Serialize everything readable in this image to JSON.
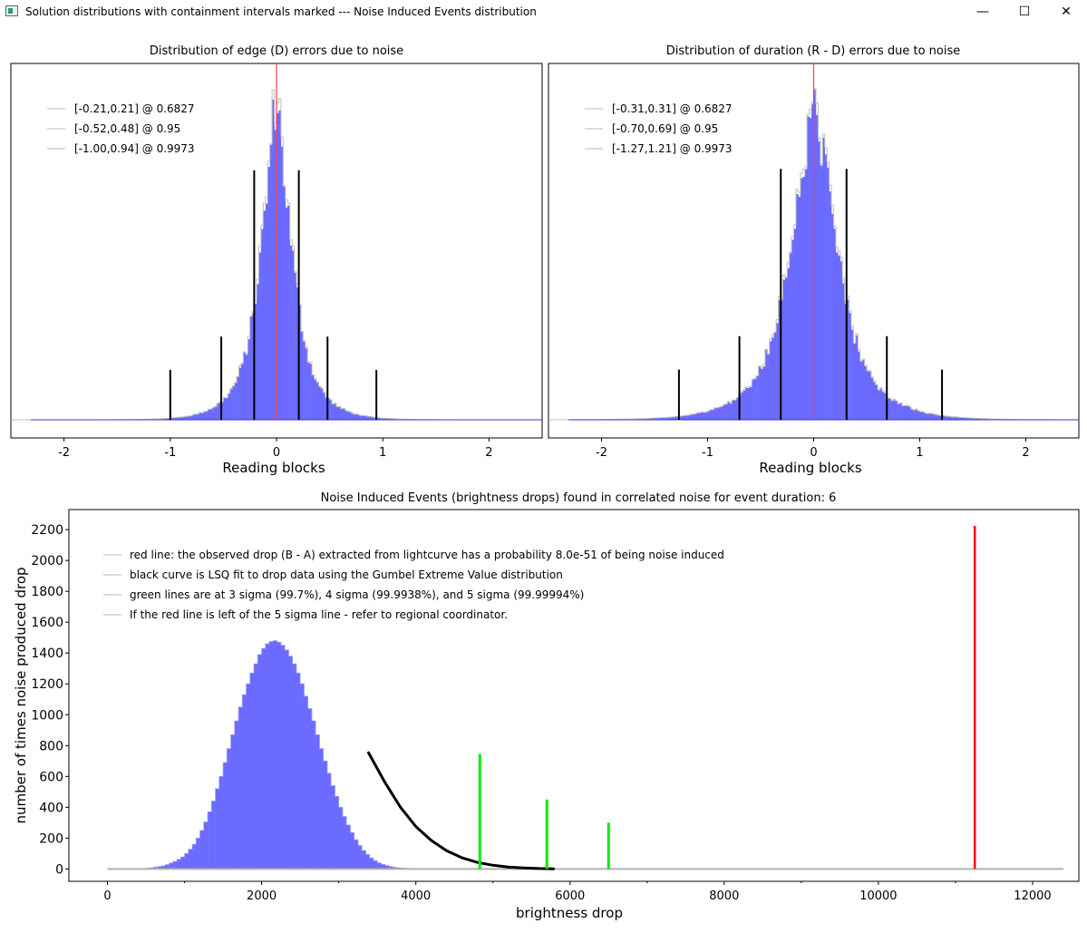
{
  "window": {
    "title": "Solution distributions with containment intervals marked --- Noise Induced Events distribution",
    "minimize_glyph": "—",
    "maximize_glyph": "☐",
    "close_glyph": "✕"
  },
  "chart_data": [
    {
      "type": "bar",
      "title": "Distribution of edge (D) errors due to noise",
      "xlabel": "Reading blocks",
      "ylabel": "",
      "xlim": [
        -2.5,
        2.5
      ],
      "x_ticks": [
        "-2",
        "-1",
        "0",
        "1",
        "2"
      ],
      "y_ticks_visible": false,
      "hist_color": "#6b6bff",
      "peak_line": {
        "x": 0.0,
        "color": "#ff4040"
      },
      "interval_lines": [
        {
          "lo": -0.21,
          "hi": 0.21,
          "rel_height": 0.75
        },
        {
          "lo": -0.52,
          "hi": 0.48,
          "rel_height": 0.25
        },
        {
          "lo": -1.0,
          "hi": 0.94,
          "rel_height": 0.15
        }
      ],
      "legend": [
        "[-0.21,0.21] @ 0.6827",
        "[-0.52,0.48] @ 0.95",
        "[-1.00,0.94] @ 0.9973"
      ],
      "legend_position": "top-left",
      "grid": false
    },
    {
      "type": "bar",
      "title": "Distribution of duration (R - D) errors due to noise",
      "xlabel": "Reading blocks",
      "ylabel": "",
      "xlim": [
        -2.5,
        2.5
      ],
      "x_ticks": [
        "-2",
        "-1",
        "0",
        "1",
        "2"
      ],
      "y_ticks_visible": false,
      "hist_color": "#6b6bff",
      "peak_line": {
        "x": 0.0,
        "color": "#ff4040"
      },
      "interval_lines": [
        {
          "lo": -0.31,
          "hi": 0.31,
          "rel_height": 0.75
        },
        {
          "lo": -0.7,
          "hi": 0.69,
          "rel_height": 0.25
        },
        {
          "lo": -1.27,
          "hi": 1.21,
          "rel_height": 0.15
        }
      ],
      "legend": [
        "[-0.31,0.31] @ 0.6827",
        "[-0.70,0.69] @ 0.95",
        "[-1.27,1.21] @ 0.9973"
      ],
      "legend_position": "top-left",
      "grid": false
    },
    {
      "type": "bar",
      "title": "Noise Induced Events (brightness drops) found in correlated noise for event duration: 6",
      "xlabel": "brightness drop",
      "ylabel": "number of times noise produced drop",
      "xlim": [
        -500,
        12600
      ],
      "ylim": [
        -80,
        2330
      ],
      "x_ticks": [
        0,
        2000,
        4000,
        6000,
        8000,
        10000,
        12000
      ],
      "y_ticks": [
        0,
        200,
        400,
        600,
        800,
        1000,
        1200,
        1400,
        1600,
        1800,
        2000,
        2200
      ],
      "hist_color": "#6b6bff",
      "histogram": {
        "bin_width": 50,
        "values": [
          0,
          0,
          0,
          0,
          0,
          0,
          0,
          0,
          2,
          3,
          5,
          8,
          12,
          16,
          20,
          28,
          38,
          48,
          62,
          78,
          100,
          128,
          160,
          200,
          250,
          305,
          370,
          440,
          520,
          600,
          690,
          780,
          870,
          960,
          1050,
          1130,
          1200,
          1270,
          1330,
          1390,
          1430,
          1460,
          1475,
          1480,
          1470,
          1450,
          1420,
          1380,
          1330,
          1270,
          1200,
          1120,
          1040,
          960,
          870,
          780,
          700,
          620,
          540,
          470,
          400,
          340,
          285,
          235,
          190,
          152,
          120,
          94,
          72,
          54,
          40,
          30,
          22,
          16,
          11,
          8,
          6,
          4,
          3,
          2,
          1,
          1,
          0,
          0,
          0,
          0,
          0
        ],
        "start": 0
      },
      "fit_curve": {
        "color": "#000000",
        "x_start": 3380,
        "x_end": 5800,
        "points": [
          [
            3380,
            760
          ],
          [
            3600,
            560
          ],
          [
            3800,
            400
          ],
          [
            4000,
            275
          ],
          [
            4200,
            185
          ],
          [
            4400,
            118
          ],
          [
            4600,
            72
          ],
          [
            4800,
            42
          ],
          [
            5000,
            24
          ],
          [
            5200,
            13
          ],
          [
            5400,
            7
          ],
          [
            5600,
            3
          ],
          [
            5800,
            1
          ]
        ]
      },
      "sigma_lines": [
        {
          "x": 4830,
          "height": 745,
          "color": "#00ee00"
        },
        {
          "x": 5700,
          "height": 450,
          "color": "#00ee00"
        },
        {
          "x": 6500,
          "height": 300,
          "color": "#00ee00"
        }
      ],
      "observed_line": {
        "x": 11250,
        "height": 2225,
        "color": "#ff0000"
      },
      "baseline": {
        "x_start": 0,
        "x_end": 12400,
        "color": "#b0b0b0"
      },
      "legend": [
        "red line: the observed drop (B - A) extracted from lightcurve has a probability 8.0e-51 of being noise induced",
        "black curve is LSQ fit to drop data using the Gumbel Extreme Value distribution",
        "green lines are at 3 sigma (99.7%), 4 sigma (99.9938%), and 5 sigma (99.99994%)",
        "If the red line is left of the 5 sigma line - refer to regional coordinator."
      ],
      "legend_position": "top-left",
      "grid": false
    }
  ]
}
